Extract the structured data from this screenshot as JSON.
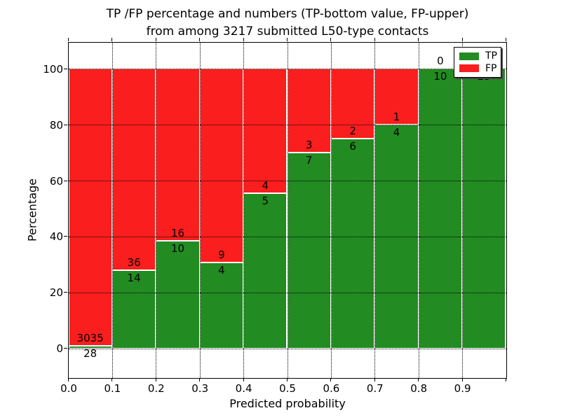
{
  "title": {
    "line1": "TP /FP percentage and numbers (TP-bottom value, FP-upper)",
    "line2": "from among 3217 submitted L50-type contacts"
  },
  "axes": {
    "ylabel": "Percentage",
    "xlabel": "Predicted probability",
    "yticks": [
      0,
      20,
      40,
      60,
      80,
      100
    ],
    "xticks": [
      "0.0",
      "0.1",
      "0.2",
      "0.3",
      "0.4",
      "0.5",
      "0.6",
      "0.7",
      "0.8",
      "0.9"
    ]
  },
  "legend": [
    {
      "label": "TP",
      "color": "#228b22"
    },
    {
      "label": "FP",
      "color": "#fa1e1e"
    }
  ],
  "colors": {
    "tp_green": "#228b22",
    "fp_red": "#fa1e1e",
    "bar_edge": "#ffffff",
    "grid": "#000000"
  },
  "chart_data": {
    "type": "bar",
    "stacked": true,
    "normalized_to_percent": true,
    "title": "TP /FP percentage and numbers (TP-bottom value, FP-upper) from among 3217 submitted L50-type contacts",
    "xlabel": "Predicted probability",
    "ylabel": "Percentage",
    "total_contacts": 3217,
    "bins": [
      "0.0-0.1",
      "0.1-0.2",
      "0.2-0.3",
      "0.3-0.4",
      "0.4-0.5",
      "0.5-0.6",
      "0.6-0.7",
      "0.7-0.8",
      "0.8-0.9",
      "0.9-1.0"
    ],
    "series": [
      {
        "name": "TP",
        "color": "#228b22",
        "counts": [
          28,
          14,
          10,
          4,
          5,
          7,
          6,
          4,
          10,
          23
        ]
      },
      {
        "name": "FP",
        "color": "#fa1e1e",
        "counts": [
          3035,
          36,
          16,
          9,
          4,
          3,
          2,
          1,
          0,
          0
        ]
      }
    ],
    "tp_percent_per_bin": [
      0.91,
      28.0,
      38.46,
      30.77,
      55.56,
      70.0,
      75.0,
      80.0,
      100.0,
      100.0
    ],
    "xlim": [
      0.0,
      1.0
    ],
    "ylim": [
      -10.5,
      109.5
    ],
    "grid": true,
    "legend_position": "upper right"
  }
}
